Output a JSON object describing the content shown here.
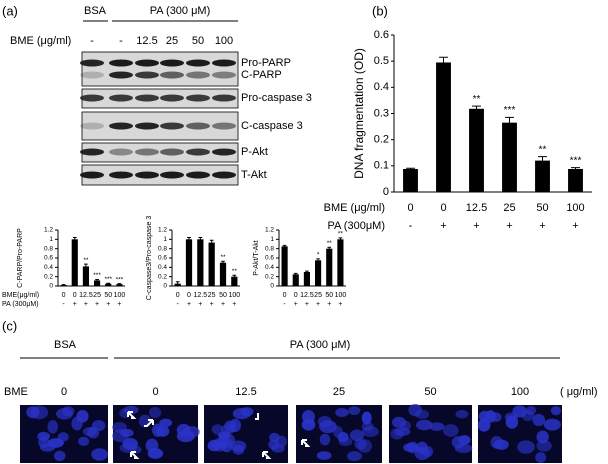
{
  "panel_labels": [
    "(a)",
    "(b)",
    "(c)"
  ],
  "blot": {
    "groups": [
      "BSA",
      "PA (300 μM)"
    ],
    "row_label": "BME (μg/ml)",
    "lanes": [
      "-",
      "-",
      "12.5",
      "25",
      "50",
      "100"
    ],
    "bands": [
      "Pro-PARP",
      "C-PARP",
      "Pro-caspase 3",
      "C-caspase 3",
      "P-Akt",
      "T-Akt"
    ]
  },
  "chart_data": [
    {
      "type": "bar",
      "ylabel": "C-PARP/Pro-PARP",
      "row_labels": [
        "BME(μg/ml)",
        "PA (300μM)"
      ],
      "categories": [
        "0",
        "0",
        "12.5",
        "25",
        "50",
        "100"
      ],
      "pa_categories": [
        "-",
        "+",
        "+",
        "+",
        "+",
        "+"
      ],
      "values": [
        0.02,
        1.0,
        0.42,
        0.12,
        0.05,
        0.04
      ],
      "errors": [
        0.01,
        0.04,
        0.05,
        0.02,
        0.01,
        0.01
      ],
      "annotations": [
        null,
        null,
        "**",
        "***",
        "***",
        "***"
      ],
      "color": "#000000",
      "ylim": [
        0,
        1.2
      ],
      "yticks": [
        0,
        0.2,
        0.4,
        0.6,
        0.8,
        1,
        1.2
      ]
    },
    {
      "type": "bar",
      "ylabel": "C-caspase3/Pro-caspase 3",
      "categories": [
        "0",
        "0",
        "12.5",
        "25",
        "50",
        "100"
      ],
      "pa_categories": [
        "-",
        "+",
        "+",
        "+",
        "+",
        "+"
      ],
      "values": [
        0.05,
        1.0,
        1.0,
        0.93,
        0.5,
        0.2
      ],
      "errors": [
        0.04,
        0.04,
        0.04,
        0.05,
        0.03,
        0.03
      ],
      "annotations": [
        null,
        null,
        null,
        null,
        "**",
        "**"
      ],
      "color": "#000000",
      "ylim": [
        0,
        1.2
      ],
      "yticks": [
        0,
        0.2,
        0.4,
        0.6,
        0.8,
        1,
        1.2
      ]
    },
    {
      "type": "bar",
      "ylabel": "P-Akt/T-Akt",
      "categories": [
        "0",
        "0",
        "12.5",
        "25",
        "50",
        "100"
      ],
      "pa_categories": [
        "-",
        "+",
        "+",
        "+",
        "+",
        "+"
      ],
      "values": [
        0.85,
        0.25,
        0.3,
        0.55,
        0.8,
        1.0
      ],
      "errors": [
        0.02,
        0.02,
        0.02,
        0.03,
        0.03,
        0.03
      ],
      "annotations": [
        null,
        null,
        null,
        "*",
        "**",
        "**"
      ],
      "color": "#000000",
      "ylim": [
        0,
        1.2
      ],
      "yticks": [
        0,
        0.2,
        0.4,
        0.6,
        0.8,
        1,
        1.2
      ]
    },
    {
      "type": "bar",
      "ylabel": "DNA fragmentation (OD)",
      "row_labels": [
        "BME (μg/ml)",
        "PA (300μM)"
      ],
      "categories": [
        "0",
        "0",
        "12.5",
        "25",
        "50",
        "100"
      ],
      "pa_categories": [
        "-",
        "+",
        "+",
        "+",
        "+",
        "+"
      ],
      "values": [
        0.088,
        0.495,
        0.318,
        0.265,
        0.12,
        0.088
      ],
      "errors": [
        0.003,
        0.02,
        0.01,
        0.02,
        0.015,
        0.005
      ],
      "annotations": [
        null,
        null,
        "**",
        "***",
        "**",
        "***"
      ],
      "color": "#000000",
      "ylim": [
        0,
        0.6
      ],
      "yticks": [
        0,
        0.1,
        0.2,
        0.3,
        0.4,
        0.5,
        0.6
      ]
    }
  ],
  "images": {
    "groups": [
      "BSA",
      "PA (300 μM)"
    ],
    "row_label": "BME",
    "labels": [
      "0",
      "0",
      "12.5",
      "25",
      "50",
      "100"
    ],
    "unit": "( μg/ml)"
  }
}
